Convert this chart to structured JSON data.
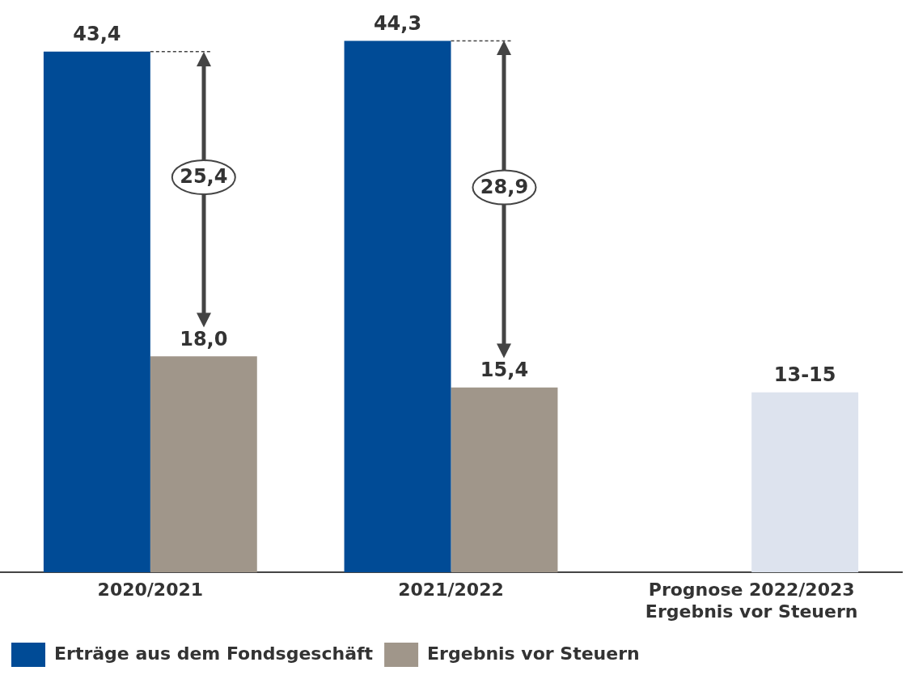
{
  "chart_data": {
    "type": "bar",
    "categories": [
      "2020/2021",
      "2021/2022",
      "Prognose 2022/2023\nErgebnis vor Steuern"
    ],
    "series": [
      {
        "name": "Erträge aus dem Fondsgeschäft",
        "color": "#004b96",
        "values": [
          43.4,
          44.3,
          null
        ],
        "value_labels": [
          "43,4",
          "44,3",
          null
        ]
      },
      {
        "name": "Ergebnis vor Steuern",
        "color": "#a0968a",
        "colors": [
          "#a0968a",
          "#a0968a",
          "#dde3ee"
        ],
        "values": [
          18.0,
          15.4,
          15
        ],
        "value_labels": [
          "18,0",
          "15,4",
          "13-15"
        ]
      }
    ],
    "annotations": [
      "25,4",
      "28,9"
    ],
    "tick_labels": "x",
    "grid": false,
    "legend": "bottom left"
  }
}
